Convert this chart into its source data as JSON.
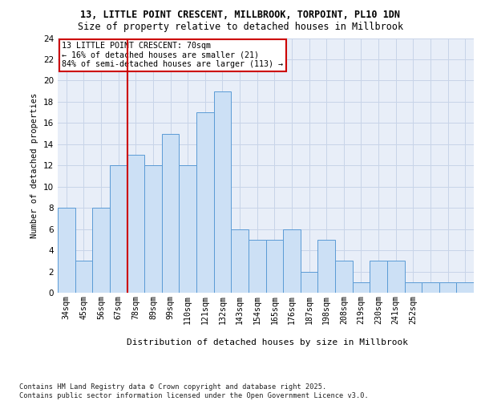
{
  "title_line1": "13, LITTLE POINT CRESCENT, MILLBROOK, TORPOINT, PL10 1DN",
  "title_line2": "Size of property relative to detached houses in Millbrook",
  "xlabel": "Distribution of detached houses by size in Millbrook",
  "ylabel": "Number of detached properties",
  "bar_values": [
    8,
    3,
    8,
    12,
    13,
    12,
    15,
    12,
    17,
    19,
    6,
    5,
    5,
    6,
    2,
    5,
    3,
    1,
    3,
    3,
    1,
    1,
    1,
    1
  ],
  "bin_labels": [
    "34sqm",
    "45sqm",
    "56sqm",
    "67sqm",
    "78sqm",
    "89sqm",
    "99sqm",
    "110sqm",
    "121sqm",
    "132sqm",
    "143sqm",
    "154sqm",
    "165sqm",
    "176sqm",
    "187sqm",
    "198sqm",
    "208sqm",
    "219sqm",
    "230sqm",
    "241sqm",
    "252sqm",
    "",
    "",
    ""
  ],
  "bar_color": "#cce0f5",
  "bar_edge_color": "#5b9bd5",
  "bar_edge_width": 0.7,
  "grid_color": "#c8d4e8",
  "bg_color": "#e8eef8",
  "vline_color": "#cc0000",
  "vline_x": 3.5,
  "annotation_text": "13 LITTLE POINT CRESCENT: 70sqm\n← 16% of detached houses are smaller (21)\n84% of semi-detached houses are larger (113) →",
  "annotation_box_color": "#cc0000",
  "ylim": [
    0,
    24
  ],
  "yticks": [
    0,
    2,
    4,
    6,
    8,
    10,
    12,
    14,
    16,
    18,
    20,
    22,
    24
  ],
  "footnote": "Contains HM Land Registry data © Crown copyright and database right 2025.\nContains public sector information licensed under the Open Government Licence v3.0."
}
